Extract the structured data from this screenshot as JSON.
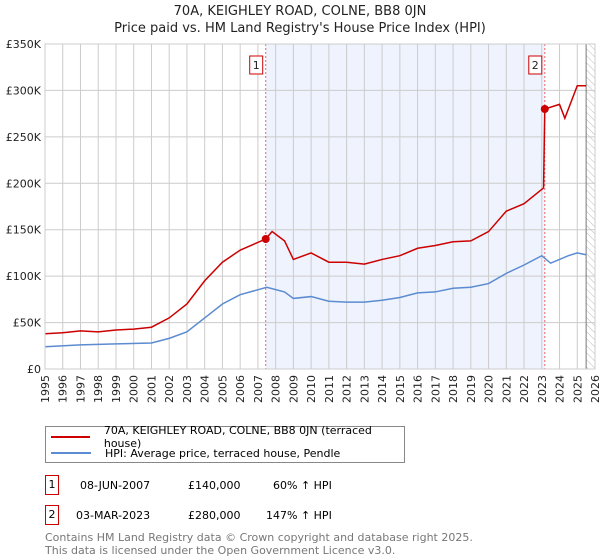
{
  "chart_data": {
    "type": "line",
    "title": "70A, KEIGHLEY ROAD, COLNE, BB8 0JN",
    "subtitle": "Price paid vs. HM Land Registry's House Price Index (HPI)",
    "xlim": [
      1995,
      2026
    ],
    "ylim": [
      0,
      350000
    ],
    "x_ticks": [
      "1995",
      "1996",
      "1997",
      "1998",
      "1999",
      "2000",
      "2001",
      "2002",
      "2003",
      "2004",
      "2005",
      "2006",
      "2007",
      "2008",
      "2009",
      "2010",
      "2011",
      "2012",
      "2013",
      "2014",
      "2015",
      "2016",
      "2017",
      "2018",
      "2019",
      "2020",
      "2021",
      "2022",
      "2023",
      "2024",
      "2025",
      "2026"
    ],
    "y_ticks": [
      {
        "v": 0,
        "label": "£0"
      },
      {
        "v": 50000,
        "label": "£50K"
      },
      {
        "v": 100000,
        "label": "£100K"
      },
      {
        "v": 150000,
        "label": "£150K"
      },
      {
        "v": 200000,
        "label": "£200K"
      },
      {
        "v": 250000,
        "label": "£250K"
      },
      {
        "v": 300000,
        "label": "£300K"
      },
      {
        "v": 350000,
        "label": "£350K"
      }
    ],
    "grid": true,
    "shaded_range": [
      2007.44,
      2023.17
    ],
    "hatched_from": 2025.5,
    "series": [
      {
        "name": "70A, KEIGHLEY ROAD, COLNE, BB8 0JN (terraced house)",
        "color": "#cc0000",
        "x": [
          1995,
          1996,
          1997,
          1998,
          1999,
          2000,
          2001,
          2002,
          2003,
          2004,
          2005,
          2006,
          2007.44,
          2007.8,
          2008.5,
          2009,
          2010,
          2011,
          2012,
          2013,
          2014,
          2015,
          2016,
          2017,
          2018,
          2019,
          2020,
          2021,
          2022,
          2023.1,
          2023.17,
          2024,
          2024.3,
          2025,
          2025.5
        ],
        "y": [
          38000,
          39000,
          41000,
          40000,
          42000,
          43000,
          45000,
          55000,
          70000,
          95000,
          115000,
          128000,
          140000,
          148000,
          138000,
          118000,
          125000,
          115000,
          115000,
          113000,
          118000,
          122000,
          130000,
          133000,
          137000,
          138000,
          148000,
          170000,
          178000,
          195000,
          280000,
          285000,
          270000,
          305000,
          305000
        ]
      },
      {
        "name": "HPI: Average price, terraced house, Pendle",
        "color": "#5b8bd0",
        "x": [
          1995,
          1997,
          1999,
          2001,
          2002,
          2003,
          2004,
          2005,
          2006,
          2007.5,
          2008.5,
          2009,
          2010,
          2011,
          2012,
          2013,
          2014,
          2015,
          2016,
          2017,
          2018,
          2019,
          2020,
          2021,
          2022,
          2023,
          2023.5,
          2024,
          2024.5,
          2025,
          2025.5
        ],
        "y": [
          24000,
          26000,
          27000,
          28000,
          33000,
          40000,
          55000,
          70000,
          80000,
          88000,
          83000,
          76000,
          78000,
          73000,
          72000,
          72000,
          74000,
          77000,
          82000,
          83000,
          87000,
          88000,
          92000,
          103000,
          112000,
          122000,
          114000,
          118000,
          122000,
          125000,
          123000
        ]
      }
    ],
    "sales": [
      {
        "label": "1",
        "x": 2007.44,
        "y": 140000,
        "date": "08-JUN-2007",
        "price": "£140,000",
        "hpi": "60% ↑ HPI"
      },
      {
        "label": "2",
        "x": 2023.17,
        "y": 280000,
        "date": "03-MAR-2023",
        "price": "£280,000",
        "hpi": "147% ↑ HPI"
      }
    ]
  },
  "footer": {
    "line1": "Contains HM Land Registry data © Crown copyright and database right 2025.",
    "line2": "This data is licensed under the Open Government Licence v3.0."
  }
}
